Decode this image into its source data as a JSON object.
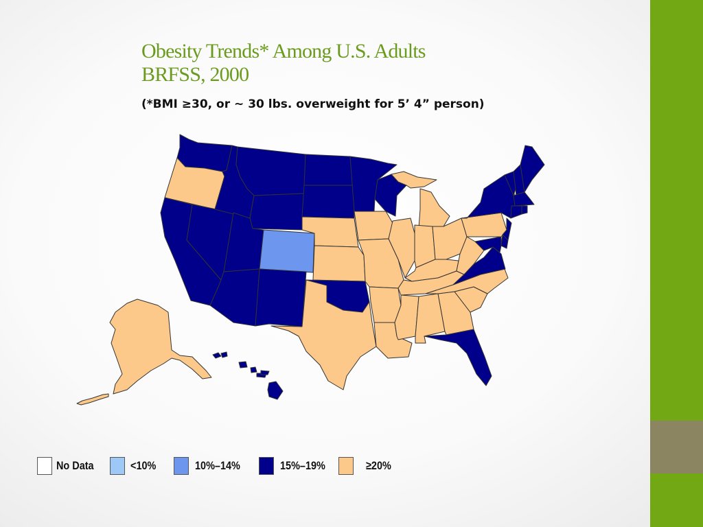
{
  "slide": {
    "title_line1": "Obesity Trends* Among U.S. Adults",
    "title_line2": "BRFSS, 2000",
    "subtitle": "(*BMI ≥30, or ~ 30 lbs. overweight for 5’ 4” person)"
  },
  "colors": {
    "title": "#6b9b1e",
    "sidebar": "#72a814",
    "sidebar_accent": "#8c8562",
    "no_data": "#ffffff",
    "lt10": "#9dc8f8",
    "p10_14": "#6d96ee",
    "p15_19": "#00008b",
    "ge20": "#fdc98a"
  },
  "legend": [
    {
      "label": "No Data",
      "category": "no_data"
    },
    {
      "label": "<10%",
      "category": "lt10"
    },
    {
      "label": "10%–14%",
      "category": "p10_14"
    },
    {
      "label": "15%–19%",
      "category": "p15_19"
    },
    {
      "label": "≥20%",
      "category": "ge20"
    }
  ],
  "states": {
    "WA": "p15_19",
    "OR": "ge20",
    "CA": "p15_19",
    "NV": "p15_19",
    "ID": "p15_19",
    "MT": "p15_19",
    "WY": "p15_19",
    "UT": "p15_19",
    "AZ": "p15_19",
    "CO": "p10_14",
    "NM": "p15_19",
    "ND": "p15_19",
    "SD": "p15_19",
    "NE": "ge20",
    "KS": "ge20",
    "OK": "p15_19",
    "TX": "ge20",
    "MN": "p15_19",
    "IA": "ge20",
    "MO": "ge20",
    "AR": "ge20",
    "LA": "ge20",
    "WI": "p15_19",
    "IL": "ge20",
    "MI": "ge20",
    "IN": "ge20",
    "OH": "ge20",
    "KY": "ge20",
    "TN": "ge20",
    "MS": "ge20",
    "AL": "ge20",
    "GA": "ge20",
    "FL": "p15_19",
    "SC": "ge20",
    "NC": "ge20",
    "VA": "p15_19",
    "WV": "ge20",
    "PA": "ge20",
    "NY": "p15_19",
    "ME": "p15_19",
    "NH": "p15_19",
    "VT": "p15_19",
    "MA": "p15_19",
    "RI": "p15_19",
    "CT": "p15_19",
    "NJ": "p15_19",
    "DE": "p15_19",
    "MD": "p15_19",
    "AK": "ge20",
    "HI": "p15_19"
  }
}
